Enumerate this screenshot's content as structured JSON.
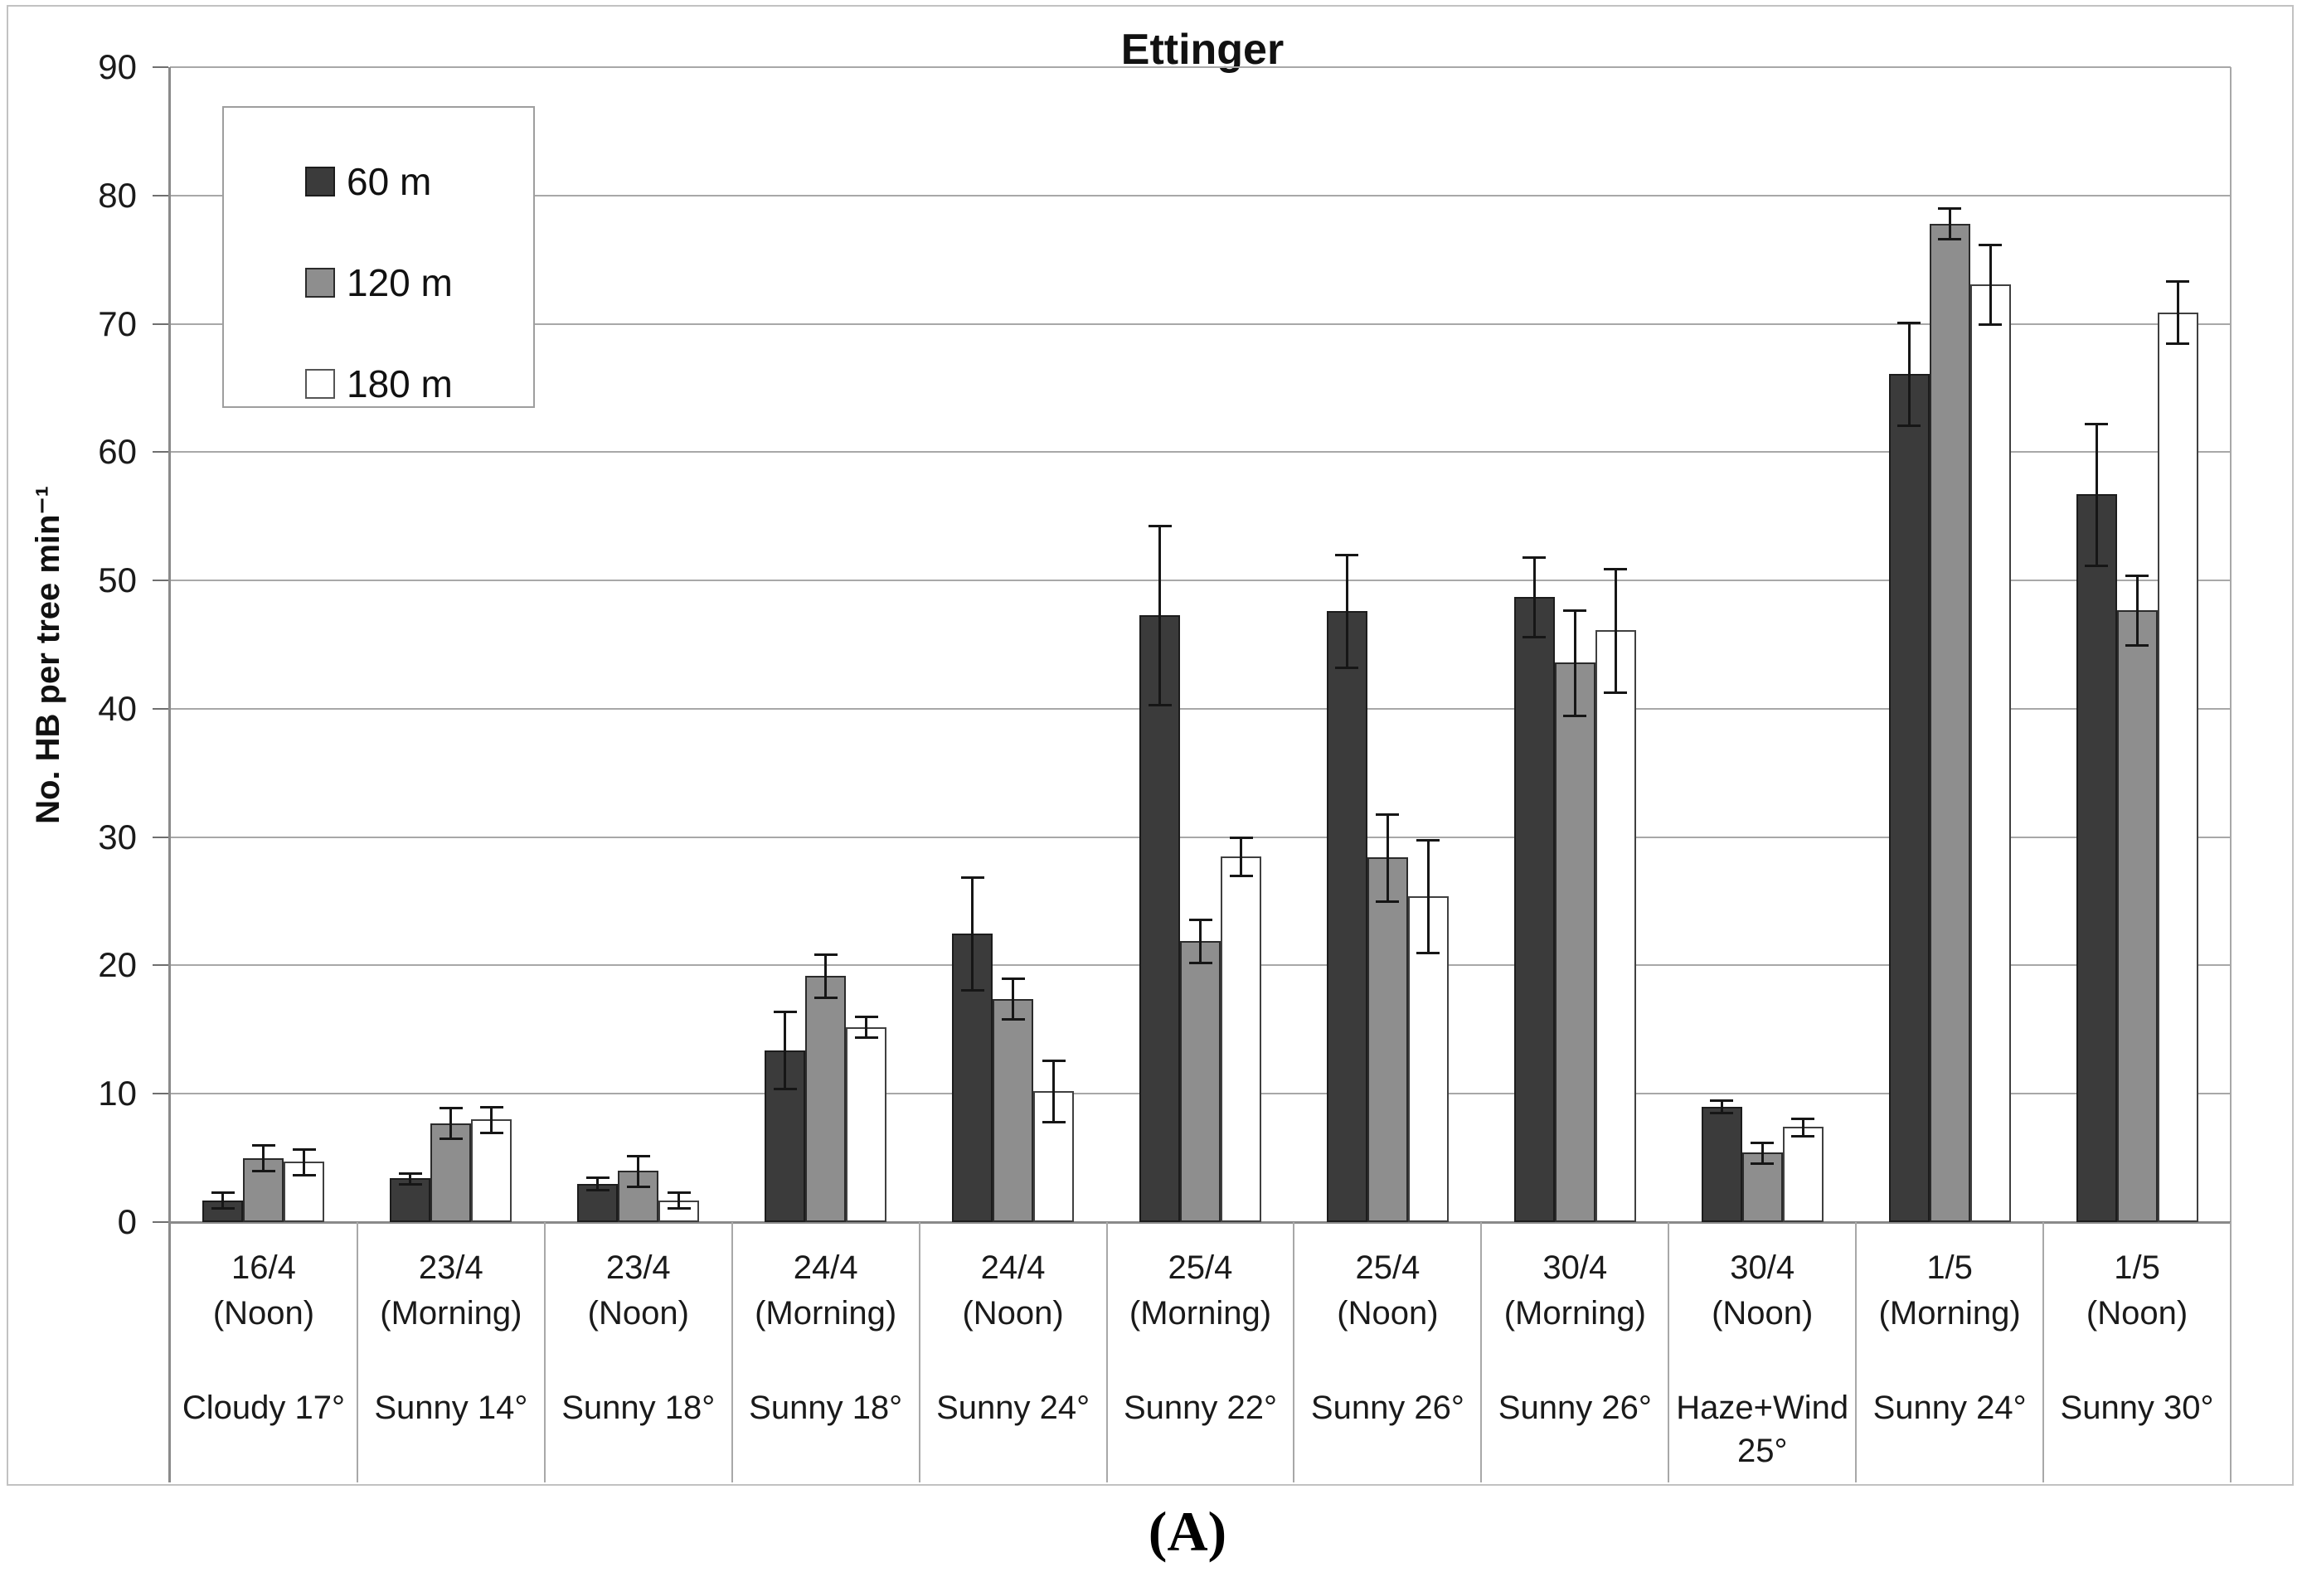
{
  "chart_data": {
    "type": "bar",
    "title": "Ettinger",
    "ylabel": "No. HB per tree min⁻¹",
    "ylim": [
      0,
      90
    ],
    "ytick_step": 10,
    "yticks": [
      0,
      10,
      20,
      30,
      40,
      50,
      60,
      70,
      80,
      90
    ],
    "grid": "horizontal-gridlines-on",
    "legend_position": "top-left",
    "caption": "(A)",
    "categories": [
      {
        "date": "16/4",
        "time": "(Noon)",
        "weather": "Cloudy 17°"
      },
      {
        "date": "23/4",
        "time": "(Morning)",
        "weather": "Sunny 14°"
      },
      {
        "date": "23/4",
        "time": "(Noon)",
        "weather": "Sunny 18°"
      },
      {
        "date": "24/4",
        "time": "(Morning)",
        "weather": "Sunny 18°"
      },
      {
        "date": "24/4",
        "time": "(Noon)",
        "weather": "Sunny 24°"
      },
      {
        "date": "25/4",
        "time": "(Morning)",
        "weather": "Sunny 22°"
      },
      {
        "date": "25/4",
        "time": "(Noon)",
        "weather": "Sunny 26°"
      },
      {
        "date": "30/4",
        "time": "(Morning)",
        "weather": "Sunny 26°"
      },
      {
        "date": "30/4",
        "time": "(Noon)",
        "weather": "Haze+Wind 25°"
      },
      {
        "date": "1/5",
        "time": "(Morning)",
        "weather": "Sunny 24°"
      },
      {
        "date": "1/5",
        "time": "(Noon)",
        "weather": "Sunny 30°"
      }
    ],
    "series": [
      {
        "name": "60 m",
        "color": "#3b3b3b",
        "border": "#1c1c1c",
        "values": [
          1.7,
          3.4,
          3.0,
          13.4,
          22.5,
          47.3,
          47.6,
          48.7,
          9.0,
          66.1,
          56.7
        ],
        "errors": [
          0.6,
          0.4,
          0.5,
          3.0,
          4.4,
          7.0,
          4.4,
          3.1,
          0.5,
          4.0,
          5.5
        ]
      },
      {
        "name": "120 m",
        "color": "#8e8e8e",
        "border": "#2b2b2b",
        "values": [
          5.0,
          7.7,
          4.0,
          19.2,
          17.4,
          21.9,
          28.4,
          43.6,
          5.4,
          77.8,
          47.7
        ],
        "errors": [
          1.0,
          1.2,
          1.2,
          1.7,
          1.6,
          1.7,
          3.4,
          4.1,
          0.8,
          1.2,
          2.7
        ]
      },
      {
        "name": "180 m",
        "color": "#ffffff",
        "border": "#404040",
        "values": [
          4.7,
          8.0,
          1.7,
          15.2,
          10.2,
          28.5,
          25.4,
          46.1,
          7.4,
          73.1,
          70.9
        ],
        "errors": [
          1.0,
          1.0,
          0.6,
          0.8,
          2.4,
          1.5,
          4.4,
          4.8,
          0.7,
          3.1,
          2.4
        ]
      }
    ]
  }
}
